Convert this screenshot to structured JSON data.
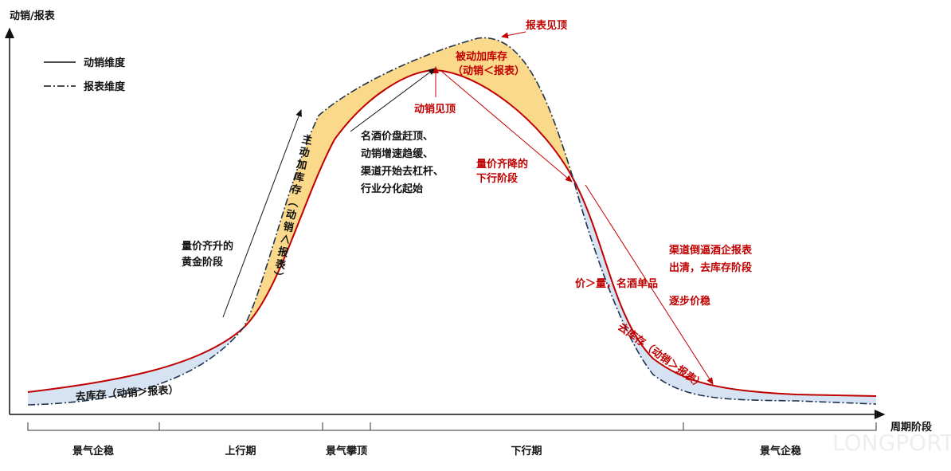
{
  "axes": {
    "y_label": "动销/报表",
    "x_label": "周期阶段"
  },
  "legend": {
    "sales": "动销维度",
    "report": "报表维度"
  },
  "annotations": {
    "report_peak": "报表见顶",
    "passive_stock": "被动加库存",
    "passive_stock_note": "（动销＜报表）",
    "sales_peak": "动销见顶",
    "peak_notes": [
      "名酒价盘赶顶、",
      "动销增速趋缓、",
      "渠道开始去杠杆、",
      "行业分化起始"
    ],
    "decline": [
      "量价齐降的",
      "下行阶段"
    ],
    "active_stock": "主动加库存（动销＜报表）",
    "golden": [
      "量价齐升的",
      "黄金阶段"
    ],
    "clearing": [
      "渠道倒逼酒企报表",
      "出清，去库存阶段"
    ],
    "price_over_volume": "价＞量，名酒单品",
    "price_stable": "逐步价稳",
    "destock_left": "去库存（动销＞报表）",
    "destock_right": "去库存（动销＞报表）"
  },
  "phases": [
    "景气企稳",
    "上行期",
    "景气攀顶",
    "下行期",
    "景气企稳"
  ],
  "watermark": "LONGPORT"
}
